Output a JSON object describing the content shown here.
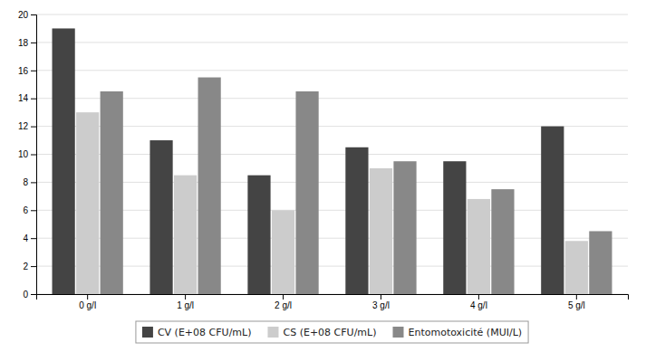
{
  "chart_data": {
    "type": "bar",
    "categories": [
      "0 g/l",
      "1 g/l",
      "2 g/l",
      "3 g/l",
      "4 g/l",
      "5 g/l"
    ],
    "series": [
      {
        "name": "CV (E+08 CFU/mL)",
        "color": "#444444",
        "values": [
          19.0,
          11.0,
          8.5,
          10.5,
          9.5,
          12.0
        ]
      },
      {
        "name": "CS (E+08 CFU/mL)",
        "color": "#cccccc",
        "values": [
          13.0,
          8.5,
          6.0,
          9.0,
          6.8,
          3.8
        ]
      },
      {
        "name": "Entomotoxicité (MUI/L)",
        "color": "#888888",
        "values": [
          14.5,
          15.5,
          14.5,
          9.5,
          7.5,
          4.5
        ]
      }
    ],
    "ylim": [
      0,
      20
    ],
    "yticks": [
      0,
      2,
      4,
      6,
      8,
      10,
      12,
      14,
      16,
      18,
      20
    ],
    "grid": true,
    "legend": "bottom"
  }
}
